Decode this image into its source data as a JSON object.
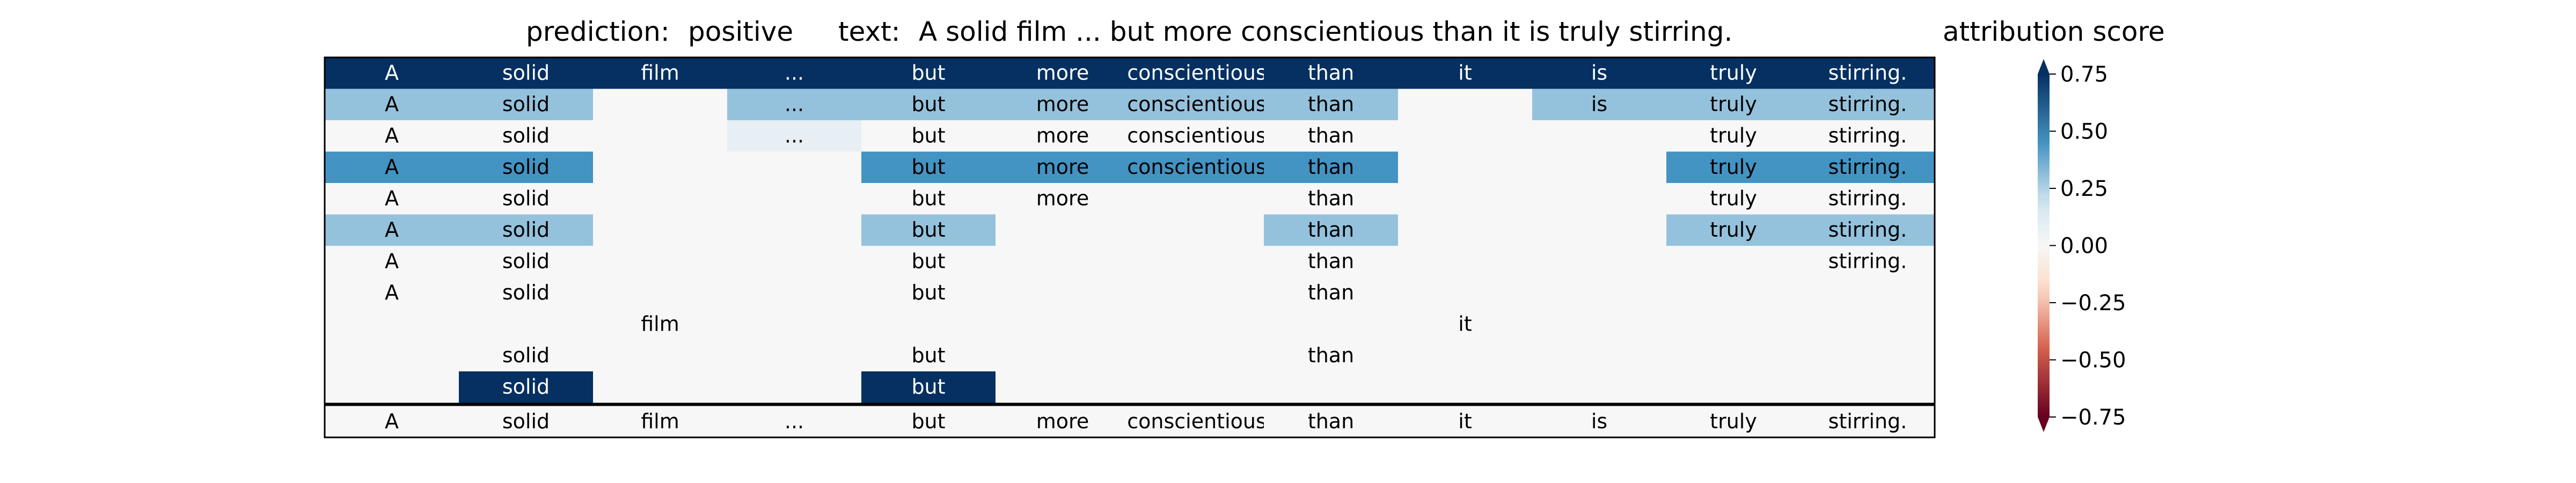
{
  "title": {
    "prediction_label": "prediction:",
    "prediction_value": "positive",
    "text_label": "text:",
    "text_value": "A solid film ... but more conscientious than it is truly stirring."
  },
  "colorbar_title": "attribution score",
  "chart_data": {
    "type": "heatmap",
    "tokens": [
      "A",
      "solid",
      "film",
      "...",
      "but",
      "more",
      "conscientious",
      "than",
      "it",
      "is",
      "truly",
      "stirring."
    ],
    "rows": [
      {
        "values": [
          0.75,
          0.75,
          0.75,
          0.75,
          0.75,
          0.75,
          0.75,
          0.75,
          0.75,
          0.75,
          0.75,
          0.75
        ],
        "shown": [
          true,
          true,
          true,
          true,
          true,
          true,
          true,
          true,
          true,
          true,
          true,
          true
        ]
      },
      {
        "values": [
          0.3,
          0.3,
          0.0,
          0.3,
          0.3,
          0.3,
          0.3,
          0.3,
          0.0,
          0.3,
          0.3,
          0.3
        ],
        "shown": [
          true,
          true,
          false,
          true,
          true,
          true,
          true,
          true,
          false,
          true,
          true,
          true
        ]
      },
      {
        "values": [
          0.0,
          0.0,
          0.0,
          0.08,
          0.0,
          0.0,
          0.0,
          0.0,
          0.0,
          0.0,
          0.0,
          0.0
        ],
        "shown": [
          true,
          true,
          false,
          true,
          true,
          true,
          true,
          true,
          false,
          false,
          true,
          true
        ]
      },
      {
        "values": [
          0.45,
          0.45,
          0.0,
          0.0,
          0.45,
          0.45,
          0.45,
          0.45,
          0.0,
          0.0,
          0.45,
          0.45
        ],
        "shown": [
          true,
          true,
          false,
          false,
          true,
          true,
          true,
          true,
          false,
          false,
          true,
          true
        ]
      },
      {
        "values": [
          0.0,
          0.0,
          0.0,
          0.0,
          0.0,
          0.0,
          0.0,
          0.0,
          0.0,
          0.0,
          0.0,
          0.0
        ],
        "shown": [
          true,
          true,
          false,
          false,
          true,
          true,
          false,
          true,
          false,
          false,
          true,
          true
        ]
      },
      {
        "values": [
          0.3,
          0.3,
          0.0,
          0.0,
          0.3,
          0.0,
          0.0,
          0.3,
          0.0,
          0.0,
          0.3,
          0.3
        ],
        "shown": [
          true,
          true,
          false,
          false,
          true,
          false,
          false,
          true,
          false,
          false,
          true,
          true
        ]
      },
      {
        "values": [
          0.0,
          0.0,
          0.0,
          0.0,
          0.0,
          0.0,
          0.0,
          0.0,
          0.0,
          0.0,
          0.0,
          0.0
        ],
        "shown": [
          true,
          true,
          false,
          false,
          true,
          false,
          false,
          true,
          false,
          false,
          false,
          true
        ]
      },
      {
        "values": [
          0.0,
          0.0,
          0.0,
          0.0,
          0.0,
          0.0,
          0.0,
          0.0,
          0.0,
          0.0,
          0.0,
          0.0
        ],
        "shown": [
          true,
          true,
          false,
          false,
          true,
          false,
          false,
          true,
          false,
          false,
          false,
          false
        ]
      },
      {
        "values": [
          0.0,
          0.0,
          0.0,
          0.0,
          0.0,
          0.0,
          0.0,
          0.0,
          0.0,
          0.0,
          0.0,
          0.0
        ],
        "shown": [
          false,
          false,
          true,
          false,
          false,
          false,
          false,
          false,
          true,
          false,
          false,
          false
        ]
      },
      {
        "values": [
          0.0,
          0.0,
          0.0,
          0.0,
          0.0,
          0.0,
          0.0,
          0.0,
          0.0,
          0.0,
          0.0,
          0.0
        ],
        "shown": [
          false,
          true,
          false,
          false,
          true,
          false,
          false,
          true,
          false,
          false,
          false,
          false
        ]
      },
      {
        "values": [
          0.0,
          0.95,
          0.0,
          0.0,
          0.95,
          0.0,
          0.0,
          0.0,
          0.0,
          0.0,
          0.0,
          0.0
        ],
        "shown": [
          false,
          true,
          false,
          false,
          true,
          false,
          false,
          false,
          false,
          false,
          false,
          false
        ]
      },
      {
        "values": [
          0.0,
          0.0,
          0.0,
          0.0,
          0.0,
          0.0,
          0.0,
          0.0,
          0.0,
          0.0,
          0.0,
          0.0
        ],
        "shown": [
          true,
          true,
          true,
          true,
          true,
          true,
          true,
          true,
          true,
          true,
          true,
          true
        ]
      }
    ],
    "colorbar": {
      "min": -0.75,
      "max": 0.75,
      "ticks": [
        0.75,
        0.5,
        0.25,
        0.0,
        -0.25,
        -0.5,
        -0.75
      ],
      "tick_labels": [
        "0.75",
        "0.50",
        "0.25",
        "0.00",
        "−0.25",
        "−0.50",
        "−0.75"
      ],
      "colormap": "RdBu",
      "extend": "both"
    },
    "colors": {
      "neg_dark": "#67001f",
      "neg_mid": "#d6604d",
      "neg_light": "#fddbc7",
      "neutral": "#f7f7f7",
      "pos_light": "#d1e5f0",
      "pos_mid": "#4393c3",
      "pos_dark": "#053061"
    }
  }
}
